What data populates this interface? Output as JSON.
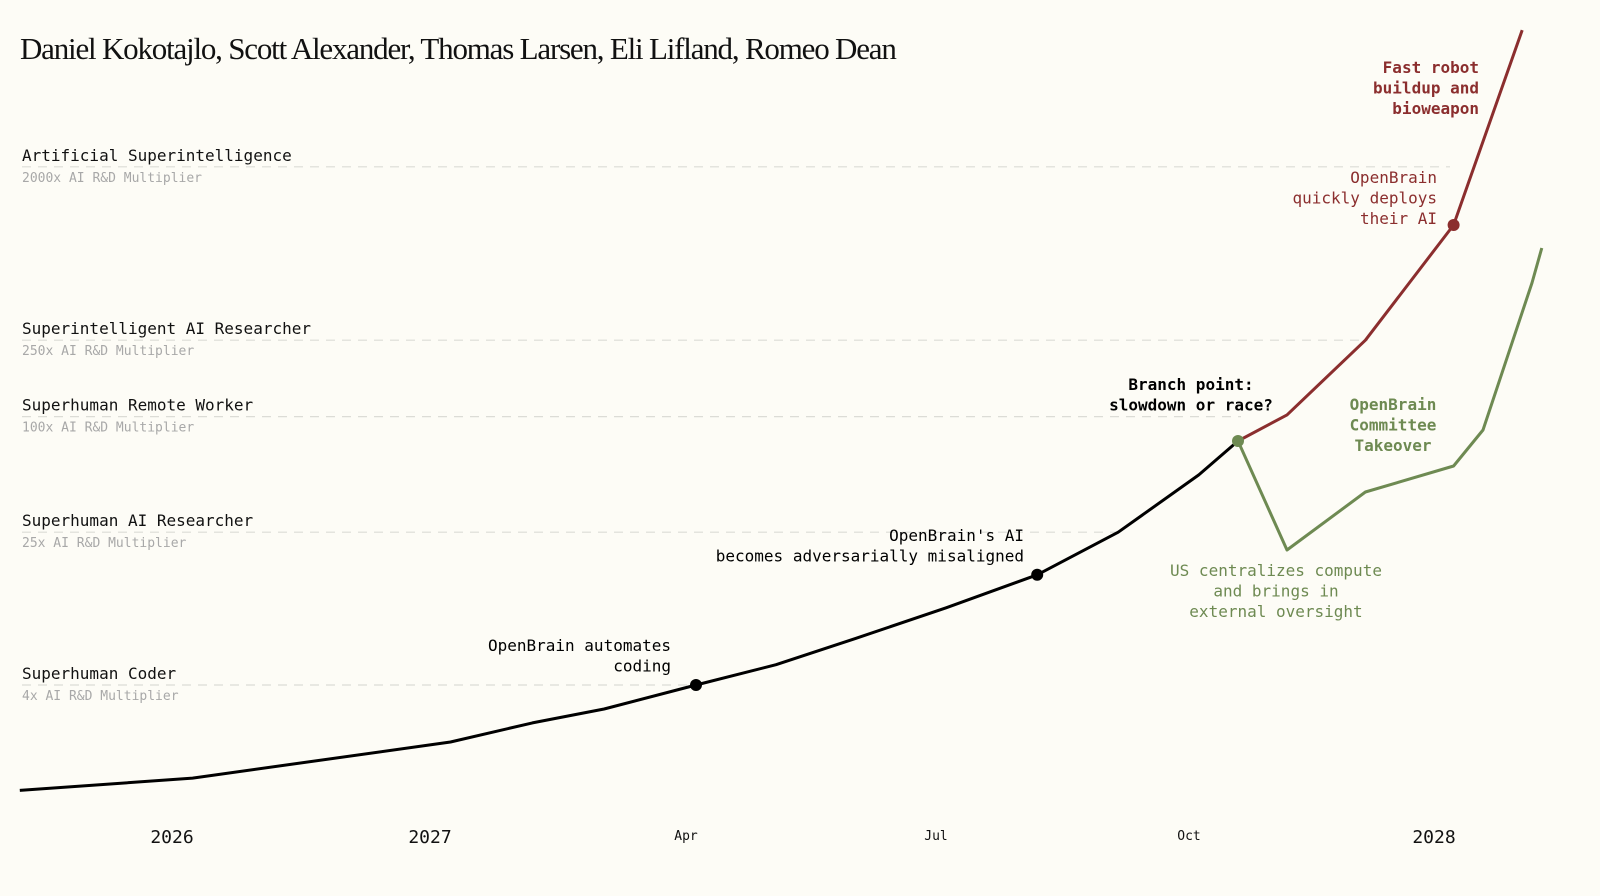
{
  "chart_data": {
    "type": "line",
    "title": "Daniel Kokotajlo, Scott Alexander, Thomas Larsen, Eli Lifland, Romeo Dean",
    "xlabel": "",
    "ylabel": "AI R&D Multiplier",
    "yscale": "log",
    "xlim": [
      2025.41,
      2028.12
    ],
    "ylim": [
      1.13,
      10300
    ],
    "grid": false,
    "x_ticks": [
      {
        "value": 2026,
        "label": "2026",
        "kind": "year"
      },
      {
        "value": 2027,
        "label": "2027",
        "kind": "year"
      },
      {
        "value": 2027.25,
        "label": "Apr",
        "kind": "month"
      },
      {
        "value": 2027.5,
        "label": "Jul",
        "kind": "month"
      },
      {
        "value": 2027.75,
        "label": "Oct",
        "kind": "month"
      },
      {
        "value": 2028,
        "label": "2028",
        "kind": "year"
      }
    ],
    "levels": [
      {
        "name": "Superhuman Coder",
        "sub": "4x AI R&D Multiplier",
        "value": 4
      },
      {
        "name": "Superhuman AI Researcher",
        "sub": "25x AI R&D Multiplier",
        "value": 25
      },
      {
        "name": "Superhuman Remote Worker",
        "sub": "100x AI R&D Multiplier",
        "value": 100
      },
      {
        "name": "Superintelligent AI Researcher",
        "sub": "250x AI R&D Multiplier",
        "value": 250
      },
      {
        "name": "Artificial Superintelligence",
        "sub": "2000x AI R&D Multiplier",
        "value": 2000
      }
    ],
    "series": [
      {
        "name": "main",
        "color": "#000000",
        "points": [
          [
            2025.41,
            1.13
          ],
          [
            2026.08,
            1.31
          ],
          [
            2027.02,
            2.02
          ],
          [
            2027.1,
            2.54
          ],
          [
            2027.17,
            3.0
          ],
          [
            2027.26,
            4.0
          ],
          [
            2027.34,
            5.1
          ],
          [
            2027.42,
            7.0
          ],
          [
            2027.51,
            10.1
          ],
          [
            2027.6,
            15.0
          ],
          [
            2027.68,
            25
          ],
          [
            2027.76,
            49.7
          ],
          [
            2027.8,
            74.6
          ]
        ]
      },
      {
        "name": "race",
        "color": "#8b2e2e",
        "points": [
          [
            2027.8,
            74.6
          ],
          [
            2027.85,
            102
          ],
          [
            2027.93,
            250
          ],
          [
            2028.02,
            995
          ],
          [
            2028.09,
            10300
          ]
        ]
      },
      {
        "name": "slowdown",
        "color": "#6e8a52",
        "points": [
          [
            2027.8,
            74.6
          ],
          [
            2027.85,
            20.2
          ],
          [
            2027.93,
            40.5
          ],
          [
            2028.02,
            55.3
          ],
          [
            2028.05,
            85.1
          ],
          [
            2028.1,
            497
          ],
          [
            2028.11,
            755
          ]
        ]
      }
    ],
    "markers": [
      {
        "x": 2027.26,
        "y": 4.0,
        "color": "#000000"
      },
      {
        "x": 2027.6,
        "y": 15.0,
        "color": "#000000"
      },
      {
        "x": 2027.8,
        "y": 74.6,
        "color": "#6e8a52"
      },
      {
        "x": 2028.02,
        "y": 995,
        "color": "#8b2e2e"
      }
    ],
    "annotations": [
      {
        "id": "automates-coding",
        "lines": [
          "OpenBrain automates",
          "coding"
        ],
        "color": "#000000",
        "bold": false
      },
      {
        "id": "misaligned",
        "lines": [
          "OpenBrain's AI",
          "becomes adversarially misaligned"
        ],
        "color": "#000000",
        "bold": false
      },
      {
        "id": "branch-point",
        "lines": [
          "Branch point:",
          "slowdown or race?"
        ],
        "color": "#000000",
        "bold": true
      },
      {
        "id": "us-centralizes",
        "lines": [
          "US centralizes compute",
          "and brings in",
          "external oversight"
        ],
        "color": "#6e8a52",
        "bold": false
      },
      {
        "id": "committee-takeover",
        "lines": [
          "OpenBrain",
          "Committee",
          "Takeover"
        ],
        "color": "#6e8a52",
        "bold": true
      },
      {
        "id": "quickly-deploys",
        "lines": [
          "OpenBrain",
          "quickly deploys",
          "their AI"
        ],
        "color": "#8b2e2e",
        "bold": false
      },
      {
        "id": "robot-bioweapon",
        "lines": [
          "Fast robot",
          "buildup and",
          "bioweapon"
        ],
        "color": "#8b2e2e",
        "bold": true
      }
    ]
  }
}
